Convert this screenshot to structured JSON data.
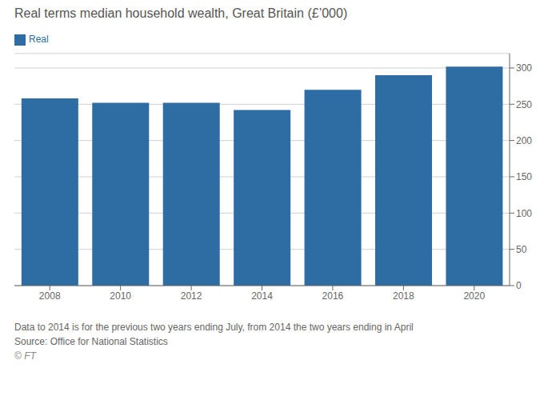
{
  "chart_data": {
    "type": "bar",
    "title": "Real terms median household wealth, Great Britain (£’000)",
    "categories": [
      "2008",
      "2010",
      "2012",
      "2014",
      "2016",
      "2018",
      "2020"
    ],
    "series": [
      {
        "name": "Real",
        "color": "#2e6da4",
        "values": [
          258,
          252,
          252,
          242,
          270,
          290,
          302
        ]
      }
    ],
    "ylim": [
      0,
      320
    ],
    "yticks": [
      0,
      50,
      100,
      150,
      200,
      250,
      300
    ],
    "grid": true,
    "legend": "upper left",
    "annotations": [
      "Data to 2014 is for the previous two years ending July, from 2014 the two years ending in April",
      "Source: Office for National Statistics",
      "© FT"
    ]
  }
}
